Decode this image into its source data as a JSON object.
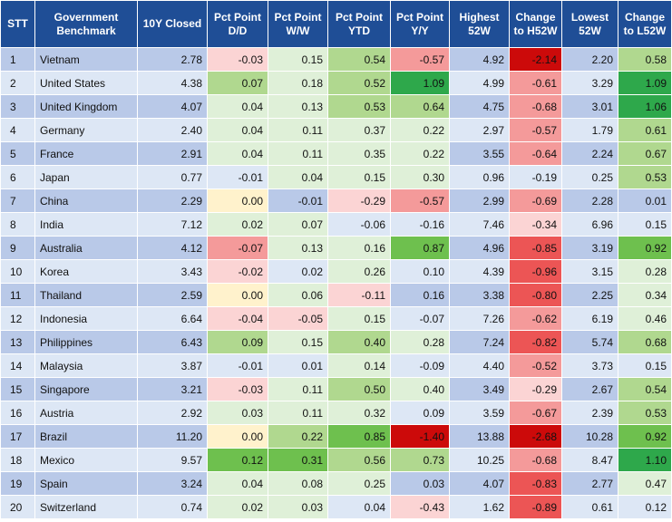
{
  "headers": [
    "STT",
    "Government Benchmark",
    "10Y Closed",
    "Pct Point D/D",
    "Pct Point W/W",
    "Pct Point YTD",
    "Pct Point Y/Y",
    "Highest 52W",
    "Change to H52W",
    "Lowest 52W",
    "Change to L52W"
  ],
  "colors": {
    "header_bg": "#1f4e96",
    "row_odd": "#b9c9e8",
    "row_even": "#dde7f5",
    "pos_light": "#dff0d8",
    "pos_mid": "#b0d88f",
    "pos_strong": "#6ec04e",
    "pos_max": "#2ea84b",
    "neg_light": "#fbd4d4",
    "neg_mid": "#f49a9a",
    "neg_strong": "#ec5555",
    "neg_max": "#cc0a0a",
    "zero": "#fff2cc"
  },
  "rows": [
    {
      "stt": "1",
      "name": "Vietnam",
      "closed": "2.78",
      "dd": "-0.03",
      "ww": "0.15",
      "ytd": "0.54",
      "yy": "-0.57",
      "high": "4.92",
      "ch_high": "-2.14",
      "low": "2.20",
      "ch_low": "0.58"
    },
    {
      "stt": "2",
      "name": "United States",
      "closed": "4.38",
      "dd": "0.07",
      "ww": "0.18",
      "ytd": "0.52",
      "yy": "1.09",
      "high": "4.99",
      "ch_high": "-0.61",
      "low": "3.29",
      "ch_low": "1.09"
    },
    {
      "stt": "3",
      "name": "United Kingdom",
      "closed": "4.07",
      "dd": "0.04",
      "ww": "0.13",
      "ytd": "0.53",
      "yy": "0.64",
      "high": "4.75",
      "ch_high": "-0.68",
      "low": "3.01",
      "ch_low": "1.06"
    },
    {
      "stt": "4",
      "name": "Germany",
      "closed": "2.40",
      "dd": "0.04",
      "ww": "0.11",
      "ytd": "0.37",
      "yy": "0.22",
      "high": "2.97",
      "ch_high": "-0.57",
      "low": "1.79",
      "ch_low": "0.61"
    },
    {
      "stt": "5",
      "name": "France",
      "closed": "2.91",
      "dd": "0.04",
      "ww": "0.11",
      "ytd": "0.35",
      "yy": "0.22",
      "high": "3.55",
      "ch_high": "-0.64",
      "low": "2.24",
      "ch_low": "0.67"
    },
    {
      "stt": "6",
      "name": "Japan",
      "closed": "0.77",
      "dd": "-0.01",
      "ww": "0.04",
      "ytd": "0.15",
      "yy": "0.30",
      "high": "0.96",
      "ch_high": "-0.19",
      "low": "0.25",
      "ch_low": "0.53"
    },
    {
      "stt": "7",
      "name": "China",
      "closed": "2.29",
      "dd": "0.00",
      "ww": "-0.01",
      "ytd": "-0.29",
      "yy": "-0.57",
      "high": "2.99",
      "ch_high": "-0.69",
      "low": "2.28",
      "ch_low": "0.01"
    },
    {
      "stt": "8",
      "name": "India",
      "closed": "7.12",
      "dd": "0.02",
      "ww": "0.07",
      "ytd": "-0.06",
      "yy": "-0.16",
      "high": "7.46",
      "ch_high": "-0.34",
      "low": "6.96",
      "ch_low": "0.15"
    },
    {
      "stt": "9",
      "name": "Australia",
      "closed": "4.12",
      "dd": "-0.07",
      "ww": "0.13",
      "ytd": "0.16",
      "yy": "0.87",
      "high": "4.96",
      "ch_high": "-0.85",
      "low": "3.19",
      "ch_low": "0.92"
    },
    {
      "stt": "10",
      "name": "Korea",
      "closed": "3.43",
      "dd": "-0.02",
      "ww": "0.02",
      "ytd": "0.26",
      "yy": "0.10",
      "high": "4.39",
      "ch_high": "-0.96",
      "low": "3.15",
      "ch_low": "0.28"
    },
    {
      "stt": "11",
      "name": "Thailand",
      "closed": "2.59",
      "dd": "0.00",
      "ww": "0.06",
      "ytd": "-0.11",
      "yy": "0.16",
      "high": "3.38",
      "ch_high": "-0.80",
      "low": "2.25",
      "ch_low": "0.34"
    },
    {
      "stt": "12",
      "name": "Indonesia",
      "closed": "6.64",
      "dd": "-0.04",
      "ww": "-0.05",
      "ytd": "0.15",
      "yy": "-0.07",
      "high": "7.26",
      "ch_high": "-0.62",
      "low": "6.19",
      "ch_low": "0.46"
    },
    {
      "stt": "13",
      "name": "Philippines",
      "closed": "6.43",
      "dd": "0.09",
      "ww": "0.15",
      "ytd": "0.40",
      "yy": "0.28",
      "high": "7.24",
      "ch_high": "-0.82",
      "low": "5.74",
      "ch_low": "0.68"
    },
    {
      "stt": "14",
      "name": "Malaysia",
      "closed": "3.87",
      "dd": "-0.01",
      "ww": "0.01",
      "ytd": "0.14",
      "yy": "-0.09",
      "high": "4.40",
      "ch_high": "-0.52",
      "low": "3.73",
      "ch_low": "0.15"
    },
    {
      "stt": "15",
      "name": "Singapore",
      "closed": "3.21",
      "dd": "-0.03",
      "ww": "0.11",
      "ytd": "0.50",
      "yy": "0.40",
      "high": "3.49",
      "ch_high": "-0.29",
      "low": "2.67",
      "ch_low": "0.54"
    },
    {
      "stt": "16",
      "name": "Austria",
      "closed": "2.92",
      "dd": "0.03",
      "ww": "0.11",
      "ytd": "0.32",
      "yy": "0.09",
      "high": "3.59",
      "ch_high": "-0.67",
      "low": "2.39",
      "ch_low": "0.53"
    },
    {
      "stt": "17",
      "name": "Brazil",
      "closed": "11.20",
      "dd": "0.00",
      "ww": "0.22",
      "ytd": "0.85",
      "yy": "-1.40",
      "high": "13.88",
      "ch_high": "-2.68",
      "low": "10.28",
      "ch_low": "0.92"
    },
    {
      "stt": "18",
      "name": "Mexico",
      "closed": "9.57",
      "dd": "0.12",
      "ww": "0.31",
      "ytd": "0.56",
      "yy": "0.73",
      "high": "10.25",
      "ch_high": "-0.68",
      "low": "8.47",
      "ch_low": "1.10"
    },
    {
      "stt": "19",
      "name": "Spain",
      "closed": "3.24",
      "dd": "0.04",
      "ww": "0.08",
      "ytd": "0.25",
      "yy": "0.03",
      "high": "4.07",
      "ch_high": "-0.83",
      "low": "2.77",
      "ch_low": "0.47"
    },
    {
      "stt": "20",
      "name": "Switzerland",
      "closed": "0.74",
      "dd": "0.02",
      "ww": "0.03",
      "ytd": "0.04",
      "yy": "-0.43",
      "high": "1.62",
      "ch_high": "-0.89",
      "low": "0.61",
      "ch_low": "0.12"
    }
  ]
}
